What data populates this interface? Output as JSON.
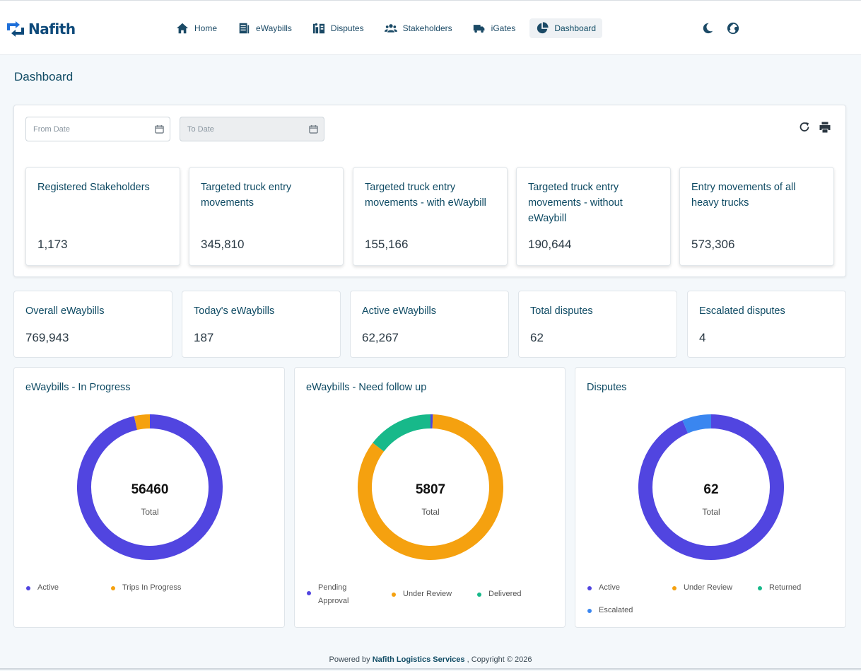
{
  "app": {
    "brand": "Nafith"
  },
  "nav": {
    "items": [
      {
        "label": "Home",
        "icon": "home-icon"
      },
      {
        "label": "eWaybills",
        "icon": "document-icon"
      },
      {
        "label": "Disputes",
        "icon": "dispute-icon"
      },
      {
        "label": "Stakeholders",
        "icon": "users-icon"
      },
      {
        "label": "iGates",
        "icon": "truck-icon"
      },
      {
        "label": "Dashboard",
        "icon": "pie-chart-icon",
        "active": true
      }
    ],
    "tools": [
      "moon-icon",
      "globe-icon"
    ]
  },
  "page": {
    "title": "Dashboard"
  },
  "filters": {
    "from_placeholder": "From Date",
    "to_placeholder": "To Date"
  },
  "kpis": [
    {
      "title": "Registered Stakeholders",
      "value": "1,173"
    },
    {
      "title": "Targeted truck entry movements",
      "value": "345,810"
    },
    {
      "title": "Targeted truck entry movements - with eWaybill",
      "value": "155,166"
    },
    {
      "title": "Targeted truck entry movements - without eWaybill",
      "value": "190,644"
    },
    {
      "title": "Entry movements of all heavy trucks",
      "value": "573,306"
    }
  ],
  "stats": [
    {
      "title": "Overall eWaybills",
      "value": "769,943"
    },
    {
      "title": "Today's eWaybills",
      "value": "187"
    },
    {
      "title": "Active eWaybills",
      "value": "62,267"
    },
    {
      "title": "Total disputes",
      "value": "62"
    },
    {
      "title": "Escalated disputes",
      "value": "4"
    }
  ],
  "charts": [
    {
      "title": "eWaybills - In Progress",
      "total": "56460",
      "total_label": "Total",
      "segments": [
        {
          "name": "Active",
          "value": 54500,
          "color": "#5145e0"
        },
        {
          "name": "Trips In Progress",
          "value": 1960,
          "color": "#f5a10f"
        }
      ]
    },
    {
      "title": "eWaybills - Need follow up",
      "total": "5807",
      "total_label": "Total",
      "segments": [
        {
          "name": "Pending Approval",
          "value": 30,
          "color": "#5145e0"
        },
        {
          "name": "Under Review",
          "value": 4930,
          "color": "#f5a10f"
        },
        {
          "name": "Delivered",
          "value": 847,
          "color": "#17b98a"
        }
      ]
    },
    {
      "title": "Disputes",
      "total": "62",
      "total_label": "Total",
      "segments": [
        {
          "name": "Active",
          "value": 58,
          "color": "#5145e0"
        },
        {
          "name": "Under Review",
          "value": 0,
          "color": "#f5a10f"
        },
        {
          "name": "Returned",
          "value": 0,
          "color": "#17b98a"
        },
        {
          "name": "Escalated",
          "value": 4,
          "color": "#3a86f0"
        }
      ]
    }
  ],
  "footer": {
    "prefix": "Powered by",
    "company": "Nafith Logistics Services",
    "suffix": ", Copyright © 2026"
  }
}
